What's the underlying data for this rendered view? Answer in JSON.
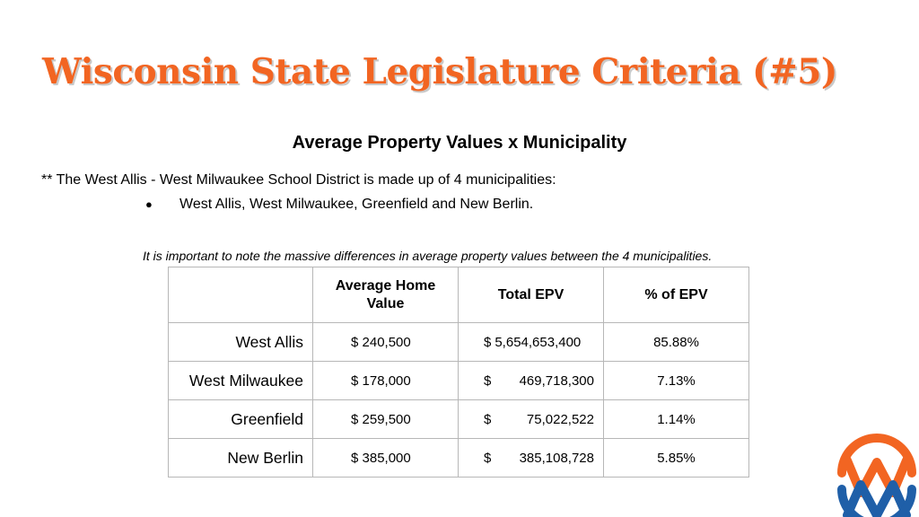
{
  "title": "Wisconsin State Legislature Criteria (#5)",
  "subtitle": "Average Property Values x Municipality",
  "intro": "** The West Allis - West Milwaukee School District is made up of 4 municipalities:",
  "bullets": [
    "West Allis, West Milwaukee, Greenfield and New Berlin."
  ],
  "note": "It is important to note the massive differences in average property values between the 4 municipalities.",
  "table": {
    "headers": [
      "",
      "Average Home Value",
      "Total EPV",
      "% of EPV"
    ],
    "rows": [
      {
        "name": "West Allis",
        "home_value": "$ 240,500",
        "epv_symbol": "$",
        "epv_amount": "5,654,653,400",
        "epv_pct": "85.88%"
      },
      {
        "name": "West Milwaukee",
        "home_value": "$ 178,000",
        "epv_symbol": "$",
        "epv_amount": "469,718,300",
        "epv_pct": "7.13%"
      },
      {
        "name": "Greenfield",
        "home_value": "$ 259,500",
        "epv_symbol": "$",
        "epv_amount": "75,022,522",
        "epv_pct": "1.14%"
      },
      {
        "name": "New Berlin",
        "home_value": "$ 385,000",
        "epv_symbol": "$",
        "epv_amount": "385,108,728",
        "epv_pct": "5.85%"
      }
    ]
  },
  "colors": {
    "title": "#f26522",
    "title_shadow": "#c9c9c9",
    "logo_orange": "#f26522",
    "logo_blue": "#1f5fa8",
    "table_border": "#b7b7b7"
  },
  "logo": {
    "icon": "wm-logo-icon"
  }
}
